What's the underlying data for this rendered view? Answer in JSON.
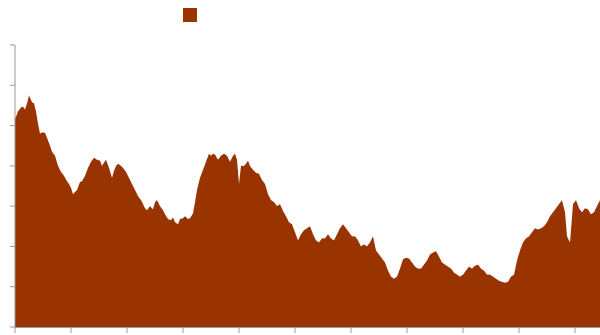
{
  "chart_data": {
    "type": "area",
    "title": "",
    "xlabel": "",
    "ylabel": "",
    "legend": {
      "position": "top",
      "entries": [
        {
          "name": "",
          "color": "#993300"
        }
      ]
    },
    "grid": false,
    "xlim": [
      0,
      585
    ],
    "ylim": [
      0,
      7
    ],
    "x_tick_count": 11,
    "y_tick_count": 8,
    "series": [
      {
        "name": "",
        "color": "#993300",
        "points": [
          [
            0,
            5.15
          ],
          [
            3,
            5.35
          ],
          [
            6,
            5.45
          ],
          [
            8,
            5.47
          ],
          [
            10,
            5.4
          ],
          [
            12,
            5.55
          ],
          [
            14,
            5.75
          ],
          [
            17,
            5.58
          ],
          [
            19,
            5.55
          ],
          [
            21,
            5.35
          ],
          [
            23,
            5.05
          ],
          [
            25,
            4.8
          ],
          [
            27,
            4.83
          ],
          [
            30,
            4.82
          ],
          [
            32,
            4.7
          ],
          [
            35,
            4.5
          ],
          [
            37,
            4.35
          ],
          [
            40,
            4.25
          ],
          [
            43,
            4.0
          ],
          [
            46,
            3.85
          ],
          [
            49,
            3.75
          ],
          [
            52,
            3.62
          ],
          [
            54,
            3.55
          ],
          [
            56,
            3.45
          ],
          [
            58,
            3.3
          ],
          [
            60,
            3.35
          ],
          [
            62,
            3.4
          ],
          [
            65,
            3.6
          ],
          [
            67,
            3.62
          ],
          [
            70,
            3.75
          ],
          [
            73,
            3.95
          ],
          [
            76,
            4.1
          ],
          [
            79,
            4.2
          ],
          [
            82,
            4.15
          ],
          [
            85,
            4.13
          ],
          [
            87,
            4.0
          ],
          [
            89,
            4.08
          ],
          [
            91,
            4.15
          ],
          [
            94,
            3.95
          ],
          [
            97,
            3.7
          ],
          [
            99,
            3.88
          ],
          [
            101,
            4.0
          ],
          [
            103,
            4.05
          ],
          [
            106,
            4.0
          ],
          [
            108,
            3.95
          ],
          [
            111,
            3.85
          ],
          [
            114,
            3.7
          ],
          [
            117,
            3.55
          ],
          [
            120,
            3.4
          ],
          [
            123,
            3.25
          ],
          [
            126,
            3.15
          ],
          [
            128,
            3.05
          ],
          [
            130,
            2.95
          ],
          [
            132,
            2.9
          ],
          [
            135,
            3.0
          ],
          [
            138,
            2.92
          ],
          [
            140,
            3.1
          ],
          [
            142,
            3.15
          ],
          [
            145,
            3.0
          ],
          [
            148,
            2.9
          ],
          [
            150,
            2.8
          ],
          [
            153,
            2.68
          ],
          [
            156,
            2.65
          ],
          [
            158,
            2.72
          ],
          [
            160,
            2.6
          ],
          [
            163,
            2.55
          ],
          [
            165,
            2.68
          ],
          [
            168,
            2.7
          ],
          [
            170,
            2.75
          ],
          [
            173,
            2.68
          ],
          [
            175,
            2.7
          ],
          [
            178,
            2.82
          ],
          [
            180,
            3.1
          ],
          [
            182,
            3.4
          ],
          [
            185,
            3.7
          ],
          [
            188,
            3.9
          ],
          [
            191,
            4.1
          ],
          [
            194,
            4.3
          ],
          [
            196,
            4.25
          ],
          [
            198,
            4.3
          ],
          [
            200,
            4.28
          ],
          [
            203,
            4.15
          ],
          [
            206,
            4.25
          ],
          [
            209,
            4.3
          ],
          [
            212,
            4.25
          ],
          [
            215,
            4.1
          ],
          [
            218,
            4.25
          ],
          [
            220,
            4.3
          ],
          [
            222,
            4.15
          ],
          [
            224,
            3.55
          ],
          [
            226,
            4.0
          ],
          [
            229,
            4.0
          ],
          [
            231,
            4.05
          ],
          [
            233,
            4.13
          ],
          [
            235,
            4.0
          ],
          [
            238,
            3.9
          ],
          [
            241,
            3.83
          ],
          [
            244,
            3.8
          ],
          [
            247,
            3.65
          ],
          [
            250,
            3.55
          ],
          [
            253,
            3.3
          ],
          [
            256,
            3.15
          ],
          [
            259,
            3.1
          ],
          [
            262,
            3.0
          ],
          [
            265,
            3.05
          ],
          [
            268,
            2.88
          ],
          [
            271,
            2.75
          ],
          [
            274,
            2.6
          ],
          [
            277,
            2.55
          ],
          [
            280,
            2.35
          ],
          [
            283,
            2.15
          ],
          [
            286,
            2.3
          ],
          [
            289,
            2.4
          ],
          [
            292,
            2.45
          ],
          [
            295,
            2.5
          ],
          [
            298,
            2.3
          ],
          [
            301,
            2.15
          ],
          [
            304,
            2.1
          ],
          [
            307,
            2.2
          ],
          [
            310,
            2.2
          ],
          [
            313,
            2.3
          ],
          [
            316,
            2.2
          ],
          [
            319,
            2.15
          ],
          [
            322,
            2.3
          ],
          [
            325,
            2.45
          ],
          [
            328,
            2.55
          ],
          [
            331,
            2.45
          ],
          [
            334,
            2.35
          ],
          [
            337,
            2.25
          ],
          [
            340,
            2.25
          ],
          [
            343,
            2.15
          ],
          [
            346,
            2.0
          ],
          [
            349,
            2.05
          ],
          [
            352,
            2.0
          ],
          [
            355,
            2.1
          ],
          [
            358,
            2.25
          ],
          [
            361,
            1.9
          ],
          [
            364,
            1.8
          ],
          [
            367,
            1.7
          ],
          [
            370,
            1.6
          ],
          [
            373,
            1.4
          ],
          [
            376,
            1.25
          ],
          [
            379,
            1.2
          ],
          [
            382,
            1.25
          ],
          [
            385,
            1.45
          ],
          [
            388,
            1.68
          ],
          [
            391,
            1.72
          ],
          [
            394,
            1.7
          ],
          [
            397,
            1.6
          ],
          [
            400,
            1.5
          ],
          [
            403,
            1.45
          ],
          [
            406,
            1.45
          ],
          [
            409,
            1.55
          ],
          [
            412,
            1.65
          ],
          [
            415,
            1.8
          ],
          [
            418,
            1.85
          ],
          [
            421,
            1.88
          ],
          [
            424,
            1.75
          ],
          [
            427,
            1.6
          ],
          [
            430,
            1.55
          ],
          [
            433,
            1.5
          ],
          [
            436,
            1.45
          ],
          [
            439,
            1.35
          ],
          [
            442,
            1.3
          ],
          [
            445,
            1.25
          ],
          [
            448,
            1.3
          ],
          [
            451,
            1.4
          ],
          [
            454,
            1.5
          ],
          [
            457,
            1.45
          ],
          [
            460,
            1.52
          ],
          [
            463,
            1.55
          ],
          [
            466,
            1.45
          ],
          [
            469,
            1.4
          ],
          [
            472,
            1.3
          ],
          [
            475,
            1.3
          ],
          [
            478,
            1.25
          ],
          [
            481,
            1.2
          ],
          [
            484,
            1.15
          ],
          [
            487,
            1.12
          ],
          [
            490,
            1.1
          ],
          [
            493,
            1.12
          ],
          [
            496,
            1.25
          ],
          [
            499,
            1.3
          ],
          [
            502,
            1.65
          ],
          [
            505,
            1.9
          ],
          [
            508,
            2.1
          ],
          [
            511,
            2.2
          ],
          [
            514,
            2.25
          ],
          [
            517,
            2.35
          ],
          [
            520,
            2.45
          ],
          [
            523,
            2.42
          ],
          [
            526,
            2.45
          ],
          [
            529,
            2.5
          ],
          [
            532,
            2.6
          ],
          [
            535,
            2.75
          ],
          [
            538,
            2.85
          ],
          [
            541,
            2.95
          ],
          [
            544,
            3.05
          ],
          [
            547,
            3.15
          ],
          [
            550,
            2.85
          ],
          [
            552,
            2.25
          ],
          [
            555,
            2.1
          ],
          [
            558,
            3.05
          ],
          [
            561,
            3.15
          ],
          [
            564,
            2.95
          ],
          [
            567,
            2.85
          ],
          [
            570,
            2.95
          ],
          [
            573,
            2.92
          ],
          [
            576,
            2.8
          ],
          [
            579,
            2.85
          ],
          [
            582,
            3.0
          ],
          [
            585,
            3.15
          ]
        ]
      }
    ]
  }
}
